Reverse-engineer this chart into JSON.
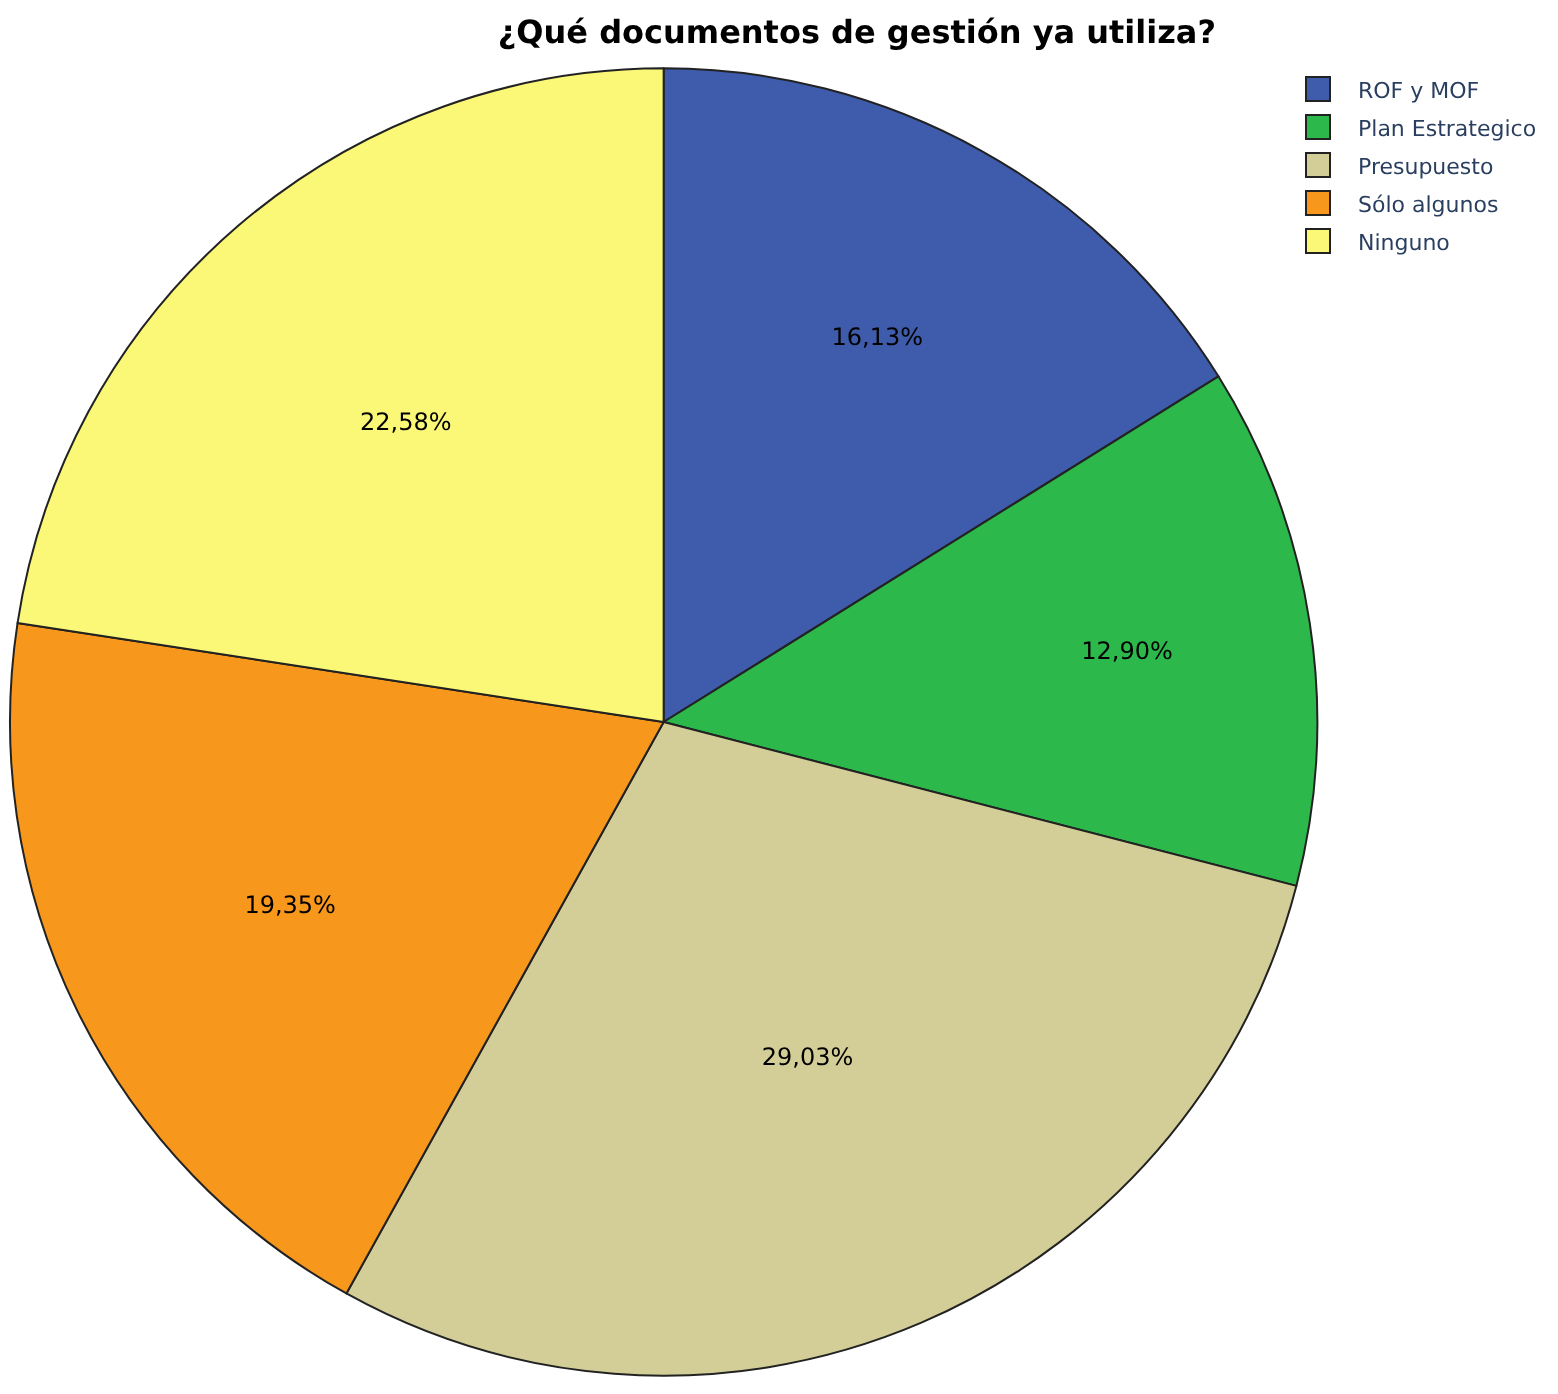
{
  "chart_data": {
    "type": "pie",
    "title": "¿Qué documentos de gestión ya utiliza?",
    "categories": [
      "ROF y MOF",
      "Plan Estrategico",
      "Presupuesto",
      "Sólo algunos",
      "Ninguno"
    ],
    "values": [
      16.13,
      12.9,
      29.03,
      19.35,
      22.58
    ],
    "value_labels": [
      "16,13%",
      "12,90%",
      "29,03%",
      "19,35%",
      "22,58%"
    ],
    "colors": [
      "#3f5bab",
      "#2db84b",
      "#d3ce97",
      "#f7981d",
      "#fbf877"
    ],
    "legend": "top right"
  }
}
